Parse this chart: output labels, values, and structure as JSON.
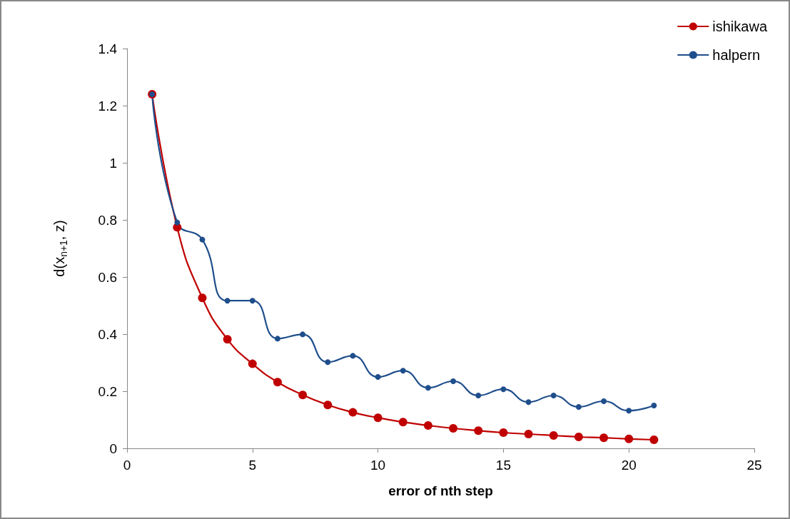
{
  "chart_data": {
    "type": "line",
    "xlabel": "error of nth step",
    "ylabel": "d(x$_{n+1}$, z)",
    "x": [
      1,
      2,
      3,
      4,
      5,
      6,
      7,
      8,
      9,
      10,
      11,
      12,
      13,
      14,
      15,
      16,
      17,
      18,
      19,
      20,
      21
    ],
    "series": [
      {
        "name": "ishikawa",
        "color": "#c00000",
        "values": [
          1.24,
          0.774,
          0.527,
          0.382,
          0.296,
          0.232,
          0.187,
          0.152,
          0.126,
          0.107,
          0.092,
          0.08,
          0.07,
          0.062,
          0.055,
          0.05,
          0.045,
          0.04,
          0.037,
          0.033,
          0.03
        ]
      },
      {
        "name": "halpern",
        "color": "#1f4e8c",
        "values": [
          1.24,
          0.791,
          0.731,
          0.517,
          0.517,
          0.384,
          0.399,
          0.302,
          0.324,
          0.25,
          0.272,
          0.212,
          0.235,
          0.185,
          0.207,
          0.162,
          0.185,
          0.145,
          0.165,
          0.132,
          0.15
        ]
      }
    ],
    "xlim": [
      0,
      25
    ],
    "xticks": [
      0,
      5,
      10,
      15,
      20,
      25
    ],
    "ylim": [
      0,
      1.4
    ],
    "yticks": [
      0,
      0.2,
      0.4,
      0.6,
      0.8,
      1,
      1.2,
      1.4
    ],
    "grid": false,
    "legend": "top right",
    "marker": "circle",
    "line_style": "solid"
  }
}
